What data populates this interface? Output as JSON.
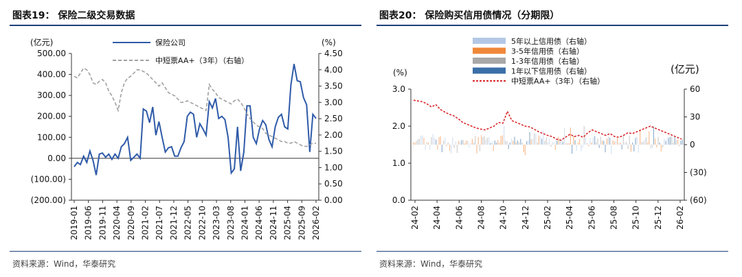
{
  "panels": [
    {
      "title": "图表19： 保险二级交易数据",
      "source": "资料来源：Wind，华泰研究",
      "chart_data": {
        "type": "line",
        "left_unit": "(亿元)",
        "right_unit": "(%)",
        "left_ticks": [
          "500.00",
          "400.00",
          "300.00",
          "200.00",
          "100.00",
          "0.00",
          "(100.00)",
          "(200.00)"
        ],
        "left_ylim": [
          -200,
          500
        ],
        "right_ticks": [
          "4.50",
          "4.00",
          "3.50",
          "3.00",
          "2.50",
          "2.00",
          "1.50",
          "1.00",
          "0.50",
          "0.00"
        ],
        "right_ylim": [
          0,
          4.5
        ],
        "x_ticks": [
          "2019-01",
          "2019-06",
          "2019-11",
          "2020-04",
          "2020-09",
          "2021-02",
          "2021-07",
          "2021-12",
          "2022-05",
          "2022-10",
          "2023-03",
          "2023-08",
          "2024-01",
          "2024-06",
          "2024-11",
          "2025-04",
          "2025-09",
          "2026-02"
        ],
        "series": [
          {
            "name": "保险公司",
            "axis": "left",
            "color": "#2e5aa8",
            "style": "solid",
            "values": [
              -40,
              -20,
              -30,
              10,
              -20,
              35,
              -10,
              -80,
              20,
              25,
              5,
              20,
              -5,
              20,
              0,
              55,
              70,
              100,
              -10,
              5,
              20,
              0,
              235,
              225,
              170,
              245,
              110,
              175,
              100,
              30,
              50,
              55,
              10,
              10,
              50,
              80,
              200,
              220,
              210,
              100,
              165,
              140,
              110,
              270,
              240,
              285,
              190,
              200,
              185,
              100,
              -70,
              -50,
              150,
              -60,
              30,
              250,
              250,
              100,
              70,
              140,
              180,
              160,
              90,
              55,
              150,
              195,
              210,
              150,
              140,
              350,
              450,
              370,
              365,
              290,
              255,
              30,
              210,
              190
            ]
          },
          {
            "name": "中短票AA+（3年）（右轴）",
            "axis": "right",
            "color": "#a0a0a0",
            "style": "dashed",
            "values": [
              3.8,
              3.75,
              3.9,
              4.05,
              4.0,
              3.85,
              3.6,
              3.55,
              3.65,
              3.7,
              3.6,
              3.35,
              3.2,
              3.0,
              2.75,
              3.3,
              3.6,
              3.75,
              3.8,
              3.9,
              4.0,
              4.0,
              3.95,
              3.9,
              3.8,
              3.7,
              3.6,
              3.5,
              3.6,
              3.45,
              3.3,
              3.25,
              3.2,
              3.1,
              3.0,
              3.0,
              3.05,
              3.0,
              2.95,
              2.9,
              2.85,
              2.8,
              2.75,
              3.55,
              3.4,
              3.3,
              3.15,
              3.1,
              3.05,
              3.0,
              2.95,
              3.05,
              3.1,
              3.0,
              2.85,
              2.65,
              2.5,
              2.4,
              2.3,
              2.25,
              2.2,
              2.05,
              2.0,
              1.95,
              1.9,
              1.85,
              1.8,
              1.8,
              1.75,
              1.75,
              1.8,
              1.75,
              1.7,
              1.65,
              1.65,
              1.7,
              1.75,
              1.75
            ]
          }
        ]
      }
    },
    {
      "title": "图表20： 保险购买信用债情况（分期限）",
      "source": "资料来源：Wind，华泰研究",
      "chart_data": {
        "type": "bar",
        "left_unit": "(%)",
        "right_unit": "(亿元)",
        "left_ticks": [
          "3.0",
          "2.0",
          "1.0",
          "0.0"
        ],
        "left_ylim": [
          0,
          3.0
        ],
        "right_ticks": [
          "60",
          "30",
          "0",
          "(30)",
          "(60)"
        ],
        "right_ylim": [
          -60,
          60
        ],
        "x_ticks": [
          "24-02",
          "24-04",
          "24-06",
          "24-08",
          "24-10",
          "24-12",
          "25-02",
          "25-04",
          "25-06",
          "25-08",
          "25-10",
          "25-12",
          "26-02"
        ],
        "series": [
          {
            "name": "5年以上信用债（右轴）",
            "axis": "right",
            "color": "#b4c8e6",
            "style": "bar"
          },
          {
            "name": "3-5年信用债（右轴）",
            "axis": "right",
            "color": "#f0883a",
            "style": "bar"
          },
          {
            "name": "1-3年信用债（右轴）",
            "axis": "right",
            "color": "#a8a8a8",
            "style": "bar"
          },
          {
            "name": "1年以下信用债（右轴）",
            "axis": "right",
            "color": "#3b6fa8",
            "style": "bar"
          },
          {
            "name": "中短票AA+（3年）（右轴）",
            "axis": "left",
            "color": "#d9282c",
            "style": "dotted",
            "values": [
              2.7,
              2.68,
              2.66,
              2.6,
              2.52,
              2.58,
              2.45,
              2.38,
              2.32,
              2.28,
              2.2,
              2.1,
              2.05,
              2.0,
              1.95,
              1.92,
              1.9,
              1.95,
              2.0,
              2.1,
              2.08,
              2.4,
              2.15,
              2.1,
              2.05,
              2.0,
              1.98,
              1.92,
              1.85,
              1.8,
              1.75,
              1.72,
              1.65,
              1.62,
              1.7,
              1.78,
              1.72,
              1.75,
              1.7,
              1.82,
              1.9,
              1.85,
              1.8,
              1.75,
              1.8,
              1.72,
              1.7,
              1.75,
              1.82,
              1.8,
              1.85,
              1.9,
              1.95,
              2.0,
              1.95,
              1.9,
              1.85,
              1.8,
              1.75,
              1.7,
              1.65
            ]
          }
        ]
      }
    }
  ]
}
